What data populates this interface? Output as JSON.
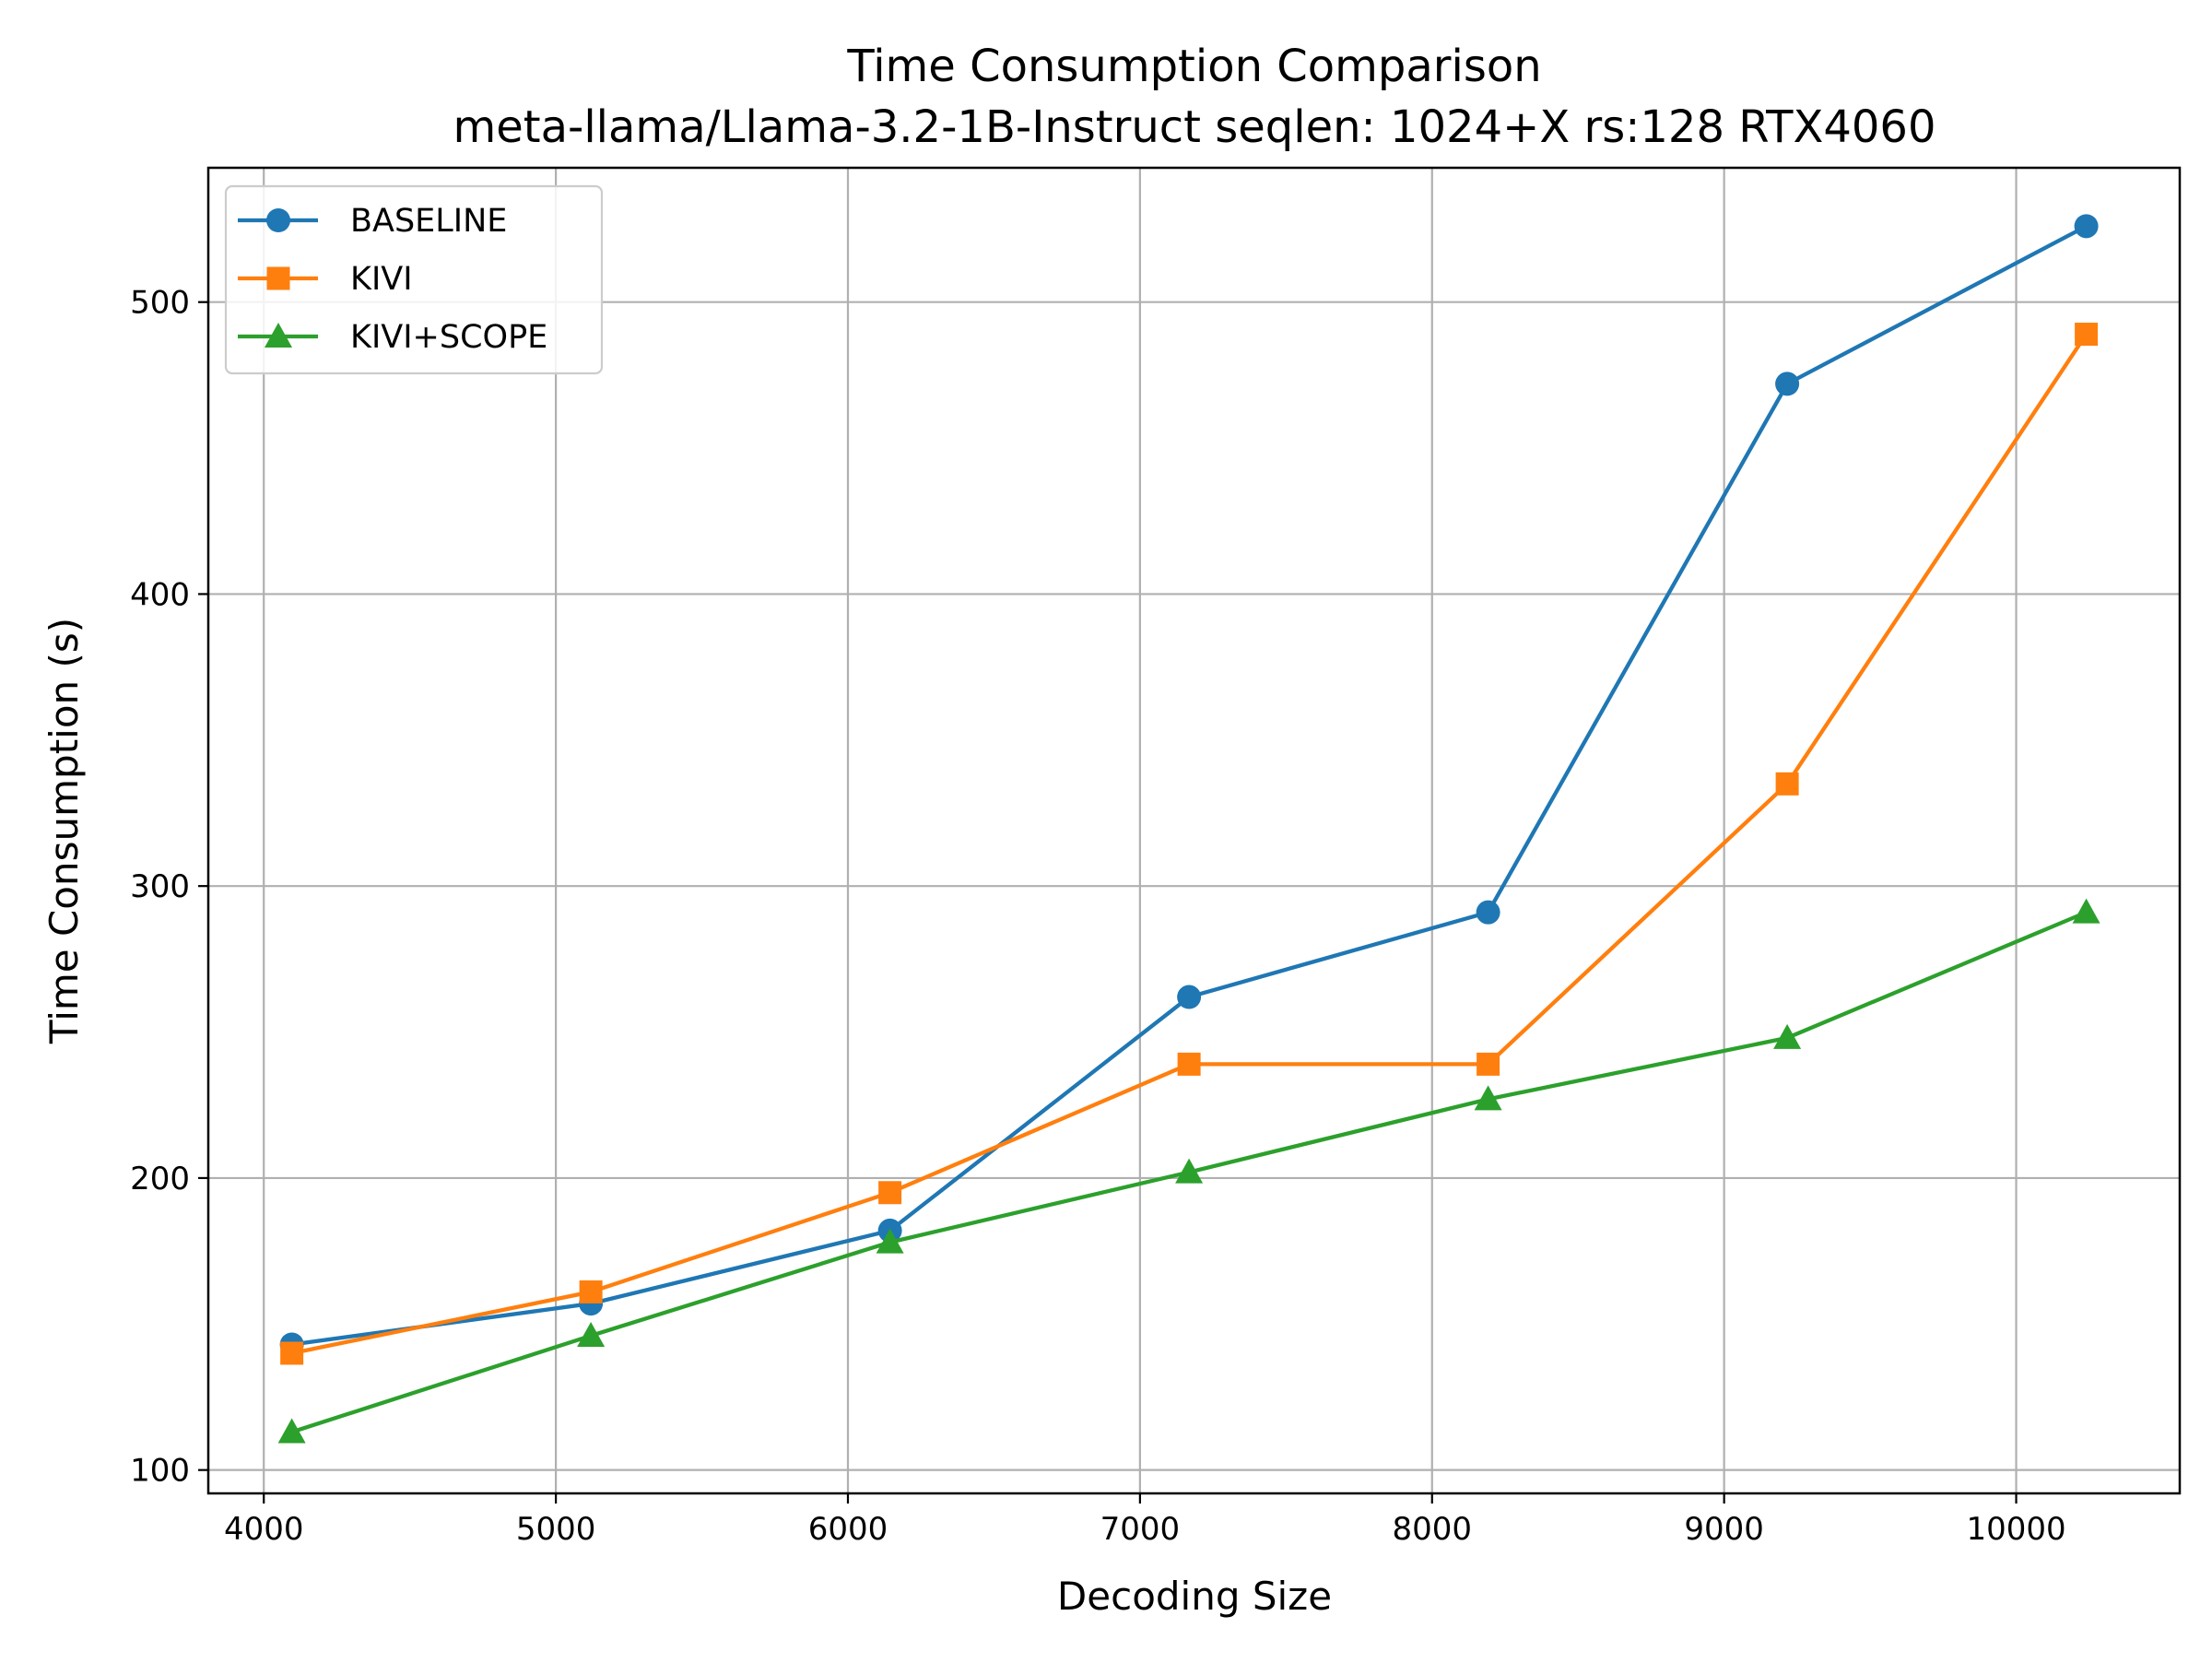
{
  "chart_data": {
    "type": "line",
    "title": "Time Consumption Comparison",
    "subtitle": "meta-llama/Llama-3.2-1B-Instruct seqlen: 1024+X rs:128 RTX4060",
    "xlabel": "Decoding Size",
    "ylabel": "Time Consumption (s)",
    "xlim": [
      3810,
      10560
    ],
    "ylim": [
      92,
      546
    ],
    "x_ticks": [
      4000,
      5000,
      6000,
      7000,
      8000,
      9000,
      10000
    ],
    "y_ticks": [
      100,
      200,
      300,
      400,
      500
    ],
    "grid": true,
    "legend_position": "upper-left",
    "x": [
      4096,
      5120,
      6144,
      7168,
      8192,
      9216,
      10240
    ],
    "series": [
      {
        "name": "BASELINE",
        "color": "#1f77b4",
        "marker": "circle",
        "values": [
          143,
          157,
          182,
          262,
          291,
          472,
          526
        ]
      },
      {
        "name": "KIVI",
        "color": "#ff7f0e",
        "marker": "square",
        "values": [
          140,
          161,
          195,
          239,
          239,
          335,
          489
        ]
      },
      {
        "name": "KIVI+SCOPE",
        "color": "#2ca02c",
        "marker": "triangle",
        "values": [
          113,
          146,
          178,
          202,
          227,
          248,
          291
        ]
      }
    ]
  }
}
